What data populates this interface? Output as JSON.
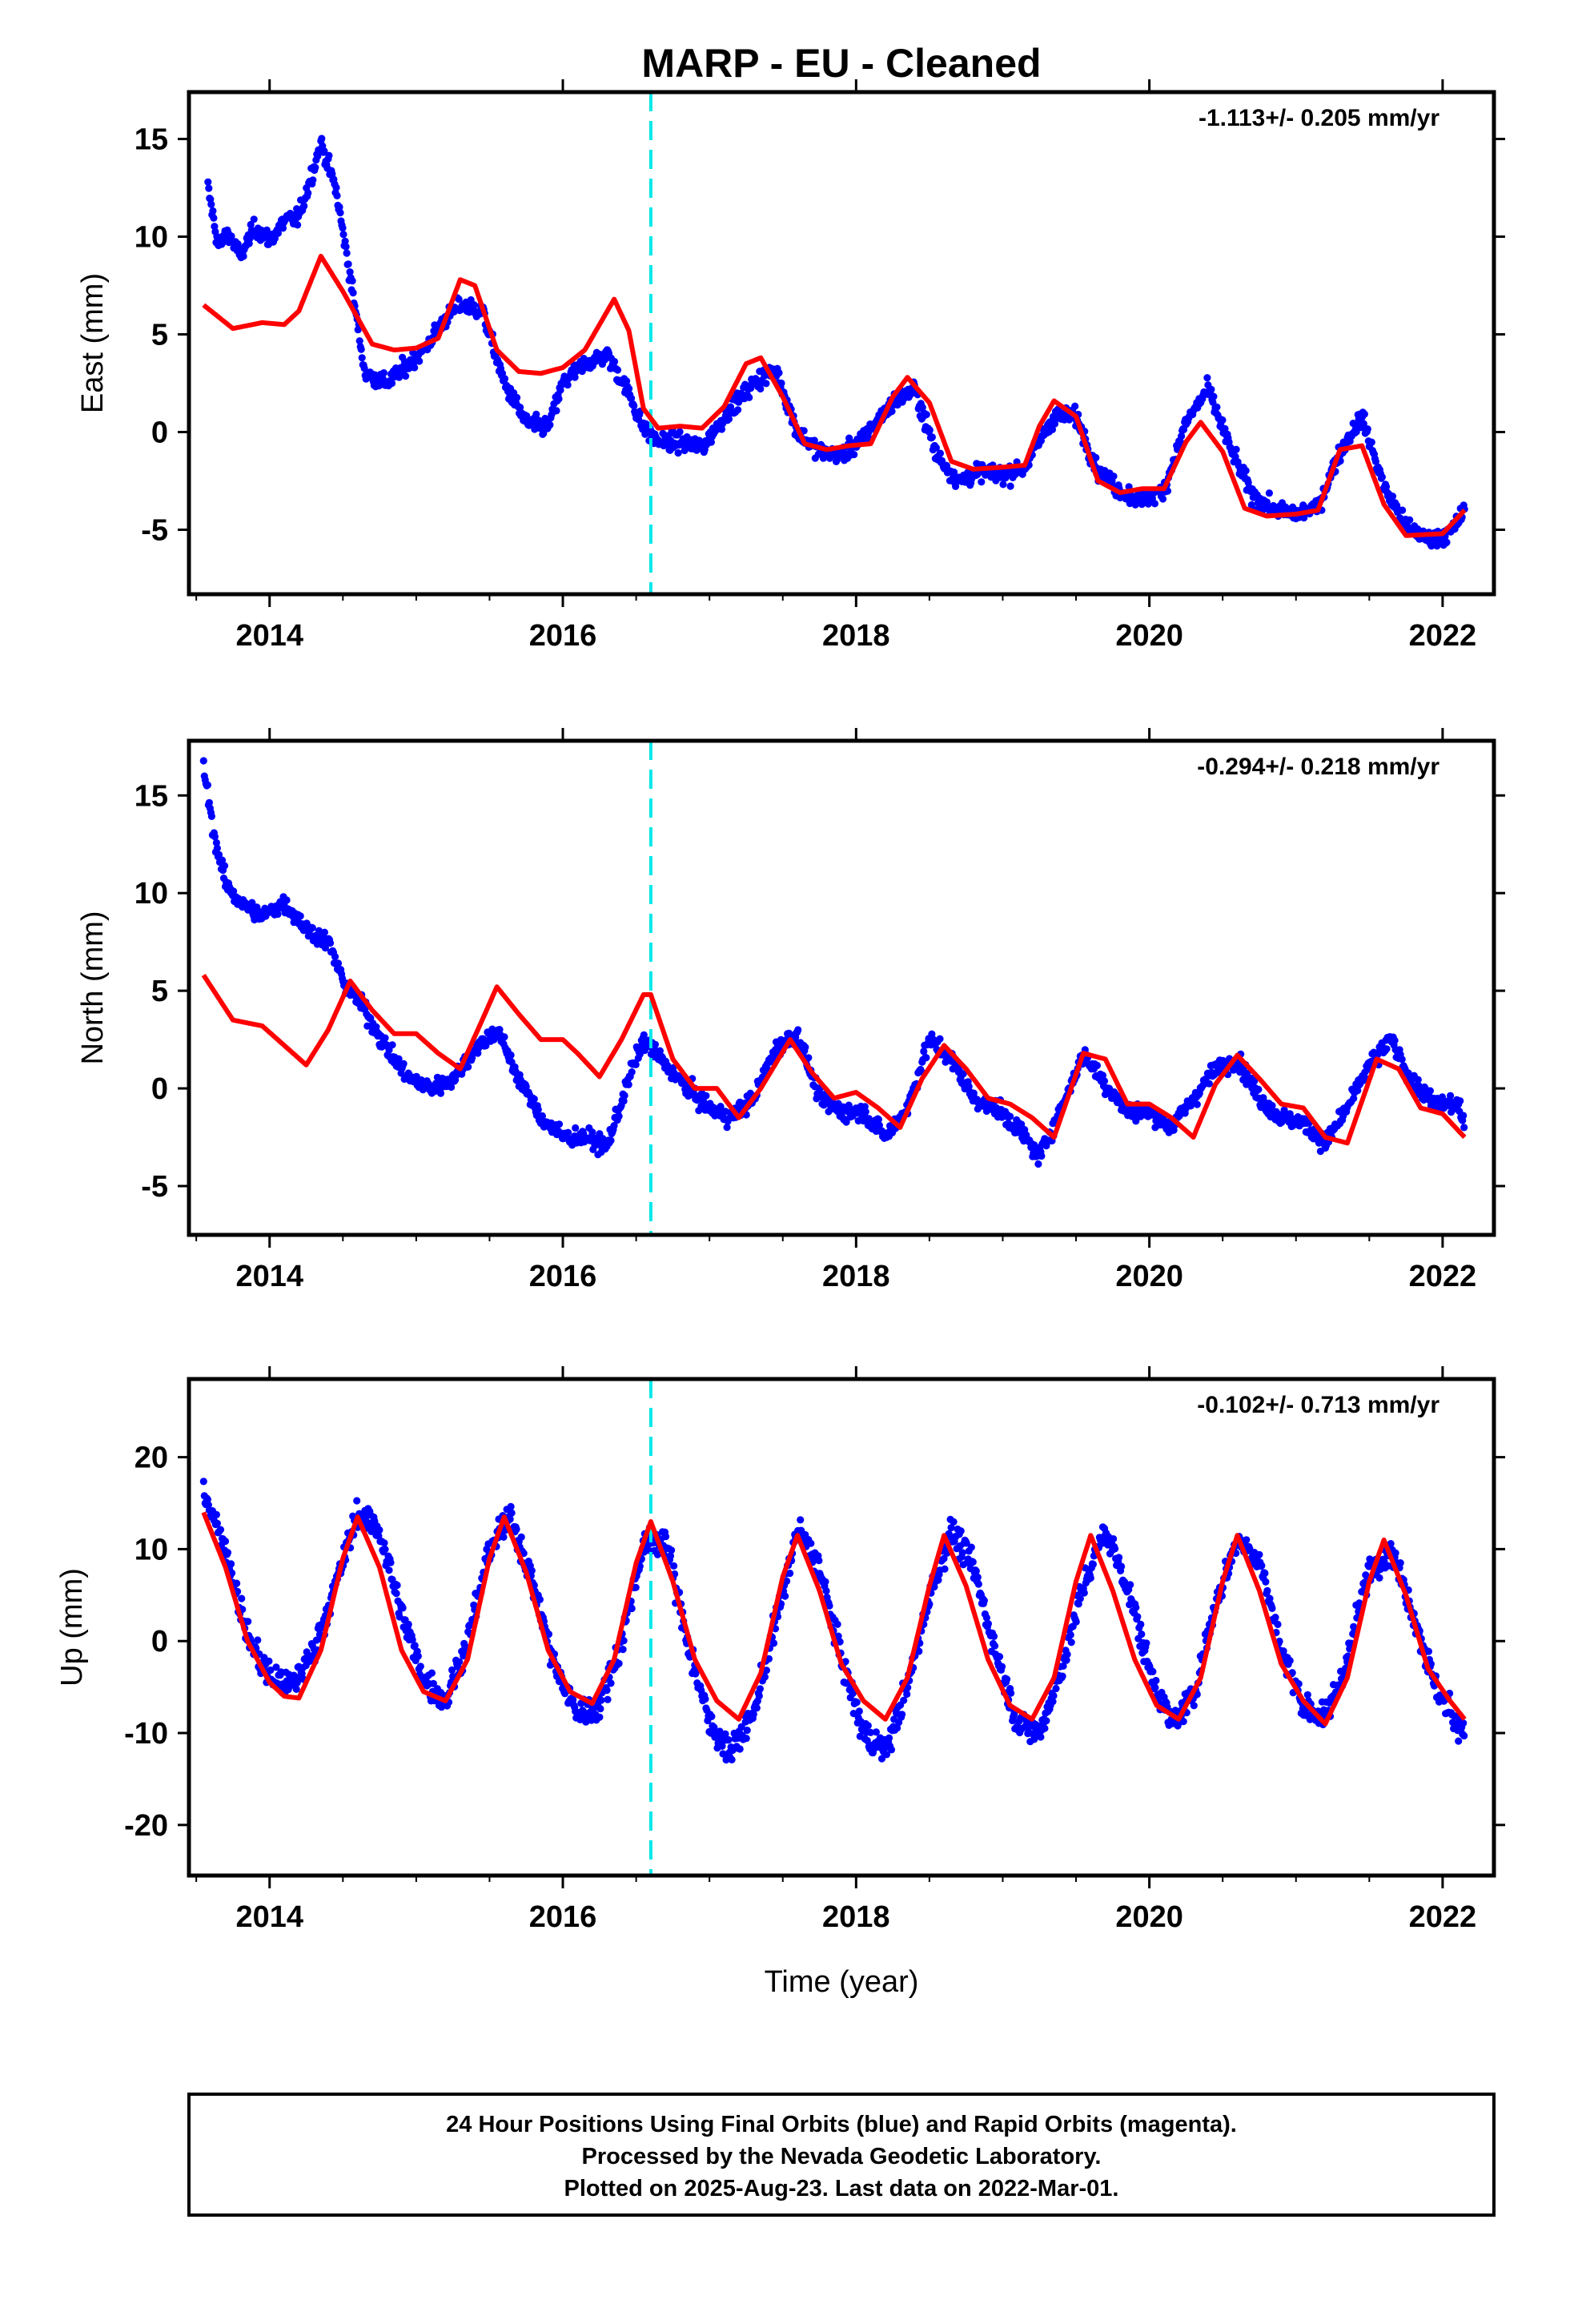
{
  "chart_data": {
    "title": "MARP  - EU - Cleaned",
    "type": "scatter",
    "xlabel": "Time (year)",
    "xlim": [
      2013.45,
      2022.35
    ],
    "x_ticks": [
      2014,
      2016,
      2018,
      2020,
      2022
    ],
    "x_tick_labels": [
      "2014",
      "2016",
      "2018",
      "2020",
      "2022"
    ],
    "vline_x": 2016.6,
    "colors": {
      "points": "#0000ff",
      "model": "#ff0000",
      "vline": "#00e8e8",
      "rapid": "#ff00ff"
    },
    "panels": [
      {
        "name": "East",
        "ylabel": "East (mm)",
        "ylim": [
          -8.3,
          17.4
        ],
        "y_ticks": [
          -5,
          0,
          5,
          10,
          15
        ],
        "y_tick_labels": [
          "-5",
          "0",
          "5",
          "10",
          "15"
        ],
        "rate_label": "-1.113+/- 0.205 mm/yr",
        "series": [
          {
            "type": "scatter",
            "x": [
              2013.58,
              2013.65,
              2013.72,
              2013.8,
              2013.9,
              2014.0,
              2014.1,
              2014.2,
              2014.3,
              2014.35,
              2014.45,
              2014.55,
              2014.65,
              2014.8,
              2014.95,
              2015.05,
              2015.2,
              2015.3,
              2015.45,
              2015.6,
              2015.75,
              2015.9,
              2016.0,
              2016.15,
              2016.3,
              2016.45,
              2016.55,
              2016.65,
              2016.8,
              2016.95,
              2017.1,
              2017.3,
              2017.45,
              2017.6,
              2017.75,
              2017.9,
              2018.05,
              2018.25,
              2018.4,
              2018.55,
              2018.7,
              2018.85,
              2019.0,
              2019.15,
              2019.35,
              2019.5,
              2019.65,
              2019.8,
              2019.95,
              2020.1,
              2020.25,
              2020.4,
              2020.55,
              2020.7,
              2020.85,
              2021.0,
              2021.15,
              2021.3,
              2021.45,
              2021.6,
              2021.75,
              2021.9,
              2022.05,
              2022.15
            ],
            "y": [
              12.5,
              9.5,
              10.2,
              9.0,
              10.5,
              9.8,
              10.8,
              11.0,
              13.5,
              14.8,
              12.5,
              8.0,
              3.0,
              2.5,
              3.5,
              4.2,
              5.8,
              6.5,
              6.2,
              2.5,
              0.5,
              0.2,
              2.5,
              3.5,
              4.0,
              2.0,
              0.2,
              -0.5,
              -0.5,
              -0.8,
              0.8,
              2.5,
              3.2,
              0.0,
              -1.0,
              -1.2,
              -0.3,
              1.5,
              2.2,
              -1.2,
              -2.5,
              -2.0,
              -2.2,
              -1.8,
              0.8,
              0.8,
              -2.0,
              -3.0,
              -3.5,
              -3.0,
              0.5,
              2.2,
              -0.8,
              -3.2,
              -4.0,
              -4.2,
              -3.8,
              -1.0,
              0.8,
              -2.8,
              -4.8,
              -5.5,
              -5.2,
              -4.0
            ]
          },
          {
            "type": "line",
            "x": [
              2013.55,
              2013.75,
              2013.95,
              2014.1,
              2014.2,
              2014.35,
              2014.5,
              2014.7,
              2014.85,
              2015.0,
              2015.15,
              2015.3,
              2015.4,
              2015.55,
              2015.7,
              2015.85,
              2016.0,
              2016.15,
              2016.35,
              2016.45,
              2016.55,
              2016.65,
              2016.8,
              2016.95,
              2017.1,
              2017.25,
              2017.35,
              2017.5,
              2017.65,
              2017.8,
              2017.95,
              2018.1,
              2018.25,
              2018.35,
              2018.5,
              2018.65,
              2018.8,
              2019.0,
              2019.15,
              2019.25,
              2019.35,
              2019.5,
              2019.65,
              2019.8,
              2019.95,
              2020.1,
              2020.25,
              2020.35,
              2020.5,
              2020.65,
              2020.8,
              2021.0,
              2021.15,
              2021.3,
              2021.45,
              2021.6,
              2021.75,
              2022.0,
              2022.15
            ],
            "y": [
              6.5,
              5.3,
              5.6,
              5.5,
              6.2,
              9.0,
              7.2,
              4.5,
              4.2,
              4.3,
              4.8,
              7.8,
              7.5,
              4.2,
              3.1,
              3.0,
              3.3,
              4.2,
              6.8,
              5.2,
              1.2,
              0.2,
              0.3,
              0.2,
              1.3,
              3.5,
              3.8,
              1.8,
              -0.6,
              -0.9,
              -0.7,
              -0.6,
              1.8,
              2.8,
              1.5,
              -1.5,
              -1.9,
              -1.8,
              -1.7,
              0.3,
              1.6,
              0.8,
              -2.5,
              -3.1,
              -2.9,
              -2.9,
              -0.5,
              0.5,
              -1.0,
              -3.9,
              -4.3,
              -4.2,
              -4.0,
              -0.9,
              -0.7,
              -3.7,
              -5.3,
              -5.2,
              -4.0
            ]
          }
        ]
      },
      {
        "name": "North",
        "ylabel": "North (mm)",
        "ylim": [
          -7.5,
          17.8
        ],
        "y_ticks": [
          -5,
          0,
          5,
          10,
          15
        ],
        "y_tick_labels": [
          "-5",
          "0",
          "5",
          "10",
          "15"
        ],
        "rate_label": "-0.294+/- 0.218 mm/yr",
        "series": [
          {
            "type": "scatter",
            "x": [
              2013.55,
              2013.62,
              2013.7,
              2013.8,
              2013.95,
              2014.1,
              2014.25,
              2014.4,
              2014.5,
              2014.65,
              2014.8,
              2014.95,
              2015.1,
              2015.25,
              2015.4,
              2015.55,
              2015.7,
              2015.85,
              2016.0,
              2016.15,
              2016.3,
              2016.45,
              2016.55,
              2016.7,
              2016.85,
              2017.0,
              2017.15,
              2017.3,
              2017.45,
              2017.6,
              2017.75,
              2017.9,
              2018.05,
              2018.2,
              2018.35,
              2018.5,
              2018.65,
              2018.8,
              2018.95,
              2019.1,
              2019.25,
              2019.4,
              2019.55,
              2019.7,
              2019.85,
              2020.0,
              2020.15,
              2020.3,
              2020.45,
              2020.6,
              2020.75,
              2020.9,
              2021.05,
              2021.2,
              2021.35,
              2021.5,
              2021.65,
              2021.8,
              2021.95,
              2022.1,
              2022.15
            ],
            "y": [
              16.5,
              13.0,
              10.5,
              9.5,
              8.8,
              9.5,
              8.2,
              7.5,
              5.5,
              4.0,
              2.0,
              0.5,
              0.0,
              0.5,
              2.0,
              3.0,
              0.5,
              -1.5,
              -2.5,
              -2.5,
              -3.0,
              0.5,
              2.5,
              1.2,
              0.0,
              -1.0,
              -1.5,
              -0.5,
              2.0,
              2.8,
              -0.5,
              -1.2,
              -1.2,
              -2.5,
              -1.0,
              2.5,
              1.5,
              -0.5,
              -1.0,
              -2.0,
              -3.5,
              -1.0,
              1.8,
              0.2,
              -1.2,
              -1.2,
              -2.0,
              -0.5,
              1.0,
              1.5,
              -0.5,
              -1.5,
              -1.8,
              -2.8,
              -1.0,
              1.2,
              2.5,
              0.2,
              -0.8,
              -0.8,
              -2.0
            ]
          },
          {
            "type": "line",
            "x": [
              2013.55,
              2013.75,
              2013.95,
              2014.1,
              2014.25,
              2014.4,
              2014.55,
              2014.7,
              2014.85,
              2015.0,
              2015.15,
              2015.3,
              2015.45,
              2015.55,
              2015.7,
              2015.85,
              2016.0,
              2016.1,
              2016.25,
              2016.4,
              2016.55,
              2016.6,
              2016.75,
              2016.9,
              2017.05,
              2017.2,
              2017.35,
              2017.55,
              2017.7,
              2017.85,
              2018.0,
              2018.15,
              2018.3,
              2018.45,
              2018.6,
              2018.75,
              2018.9,
              2019.05,
              2019.2,
              2019.35,
              2019.55,
              2019.7,
              2019.85,
              2020.0,
              2020.15,
              2020.3,
              2020.45,
              2020.6,
              2020.75,
              2020.9,
              2021.05,
              2021.2,
              2021.35,
              2021.55,
              2021.7,
              2021.85,
              2022.0,
              2022.15
            ],
            "y": [
              5.8,
              3.5,
              3.2,
              2.2,
              1.2,
              3.0,
              5.5,
              4.0,
              2.8,
              2.8,
              1.8,
              1.0,
              3.5,
              5.2,
              3.8,
              2.5,
              2.5,
              1.8,
              0.6,
              2.5,
              4.8,
              4.8,
              1.5,
              0.0,
              0.0,
              -1.5,
              0.0,
              2.5,
              0.8,
              -0.5,
              -0.2,
              -1.0,
              -2.0,
              0.5,
              2.2,
              1.0,
              -0.5,
              -0.8,
              -1.5,
              -2.5,
              1.8,
              1.5,
              -0.8,
              -0.8,
              -1.5,
              -2.5,
              0.2,
              1.7,
              0.5,
              -0.8,
              -1.0,
              -2.5,
              -2.8,
              1.5,
              1.0,
              -1.0,
              -1.3,
              -2.5
            ]
          }
        ]
      },
      {
        "name": "Up",
        "ylabel": "Up (mm)",
        "ylim": [
          -25.5,
          28.5
        ],
        "y_ticks": [
          -20,
          -10,
          0,
          10,
          20
        ],
        "y_tick_labels": [
          "-20",
          "-10",
          "0",
          "10",
          "20"
        ],
        "rate_label": "-0.102+/- 0.713 mm/yr",
        "series": [
          {
            "type": "scatter",
            "x": [
              2013.55,
              2013.7,
              2013.85,
              2014.0,
              2014.15,
              2014.3,
              2014.45,
              2014.6,
              2014.75,
              2014.9,
              2015.05,
              2015.2,
              2015.35,
              2015.5,
              2015.65,
              2015.8,
              2015.95,
              2016.1,
              2016.25,
              2016.4,
              2016.55,
              2016.7,
              2016.85,
              2017.0,
              2017.15,
              2017.3,
              2017.45,
              2017.6,
              2017.75,
              2017.9,
              2018.05,
              2018.2,
              2018.35,
              2018.5,
              2018.65,
              2018.8,
              2018.95,
              2019.1,
              2019.25,
              2019.4,
              2019.55,
              2019.7,
              2019.85,
              2020.0,
              2020.15,
              2020.3,
              2020.45,
              2020.6,
              2020.75,
              2020.9,
              2021.05,
              2021.2,
              2021.35,
              2021.5,
              2021.65,
              2021.8,
              2021.95,
              2022.1,
              2022.15
            ],
            "y": [
              16.5,
              10.0,
              0.5,
              -4.0,
              -5.0,
              -1.0,
              6.0,
              14.0,
              12.0,
              3.0,
              -4.0,
              -6.5,
              0.0,
              10.0,
              13.5,
              6.0,
              -3.0,
              -8.0,
              -7.0,
              0.0,
              10.5,
              11.0,
              0.0,
              -9.0,
              -12.0,
              -8.0,
              2.0,
              12.0,
              8.0,
              -2.0,
              -10.0,
              -12.0,
              -5.0,
              5.0,
              12.0,
              8.0,
              -1.0,
              -9.0,
              -10.0,
              -3.0,
              6.0,
              12.0,
              6.0,
              -3.0,
              -9.0,
              -6.0,
              4.0,
              11.0,
              9.0,
              -1.0,
              -7.0,
              -8.5,
              -2.0,
              8.0,
              10.0,
              3.0,
              -5.0,
              -9.0,
              -9.5
            ]
          },
          {
            "type": "line",
            "x": [
              2013.55,
              2013.7,
              2013.85,
              2014.0,
              2014.1,
              2014.2,
              2014.35,
              2014.5,
              2014.6,
              2014.75,
              2014.9,
              2015.05,
              2015.2,
              2015.35,
              2015.5,
              2015.6,
              2015.75,
              2015.9,
              2016.05,
              2016.2,
              2016.35,
              2016.5,
              2016.6,
              2016.75,
              2016.9,
              2017.05,
              2017.2,
              2017.35,
              2017.5,
              2017.6,
              2017.75,
              2017.9,
              2018.05,
              2018.2,
              2018.35,
              2018.5,
              2018.6,
              2018.75,
              2018.9,
              2019.05,
              2019.2,
              2019.35,
              2019.5,
              2019.6,
              2019.75,
              2019.9,
              2020.05,
              2020.2,
              2020.35,
              2020.5,
              2020.6,
              2020.75,
              2020.9,
              2021.05,
              2021.2,
              2021.35,
              2021.5,
              2021.6,
              2021.75,
              2021.9,
              2022.05,
              2022.15
            ],
            "y": [
              14.0,
              8.0,
              0.0,
              -4.5,
              -6.0,
              -6.2,
              -1.0,
              9.0,
              13.5,
              8.0,
              -1.0,
              -5.5,
              -6.5,
              -2.0,
              9.0,
              13.5,
              7.5,
              -1.0,
              -5.5,
              -6.8,
              -2.0,
              8.5,
              13.0,
              6.5,
              -2.0,
              -6.5,
              -8.5,
              -3.5,
              7.0,
              11.5,
              5.5,
              -2.5,
              -6.5,
              -8.5,
              -4.0,
              6.0,
              11.5,
              6.0,
              -2.0,
              -7.0,
              -8.5,
              -4.0,
              6.5,
              11.5,
              5.5,
              -2.0,
              -7.0,
              -8.5,
              -4.0,
              6.5,
              11.5,
              5.5,
              -2.5,
              -6.5,
              -9.0,
              -4.0,
              6.5,
              11.0,
              5.0,
              -3.0,
              -6.5,
              -8.5
            ]
          }
        ]
      }
    ]
  },
  "footer": {
    "lines": [
      "24 Hour Positions Using Final Orbits (blue) and Rapid Orbits (magenta).",
      "Processed by the Nevada Geodetic Laboratory.",
      "Plotted on 2025-Aug-23. Last data on 2022-Mar-01."
    ]
  }
}
